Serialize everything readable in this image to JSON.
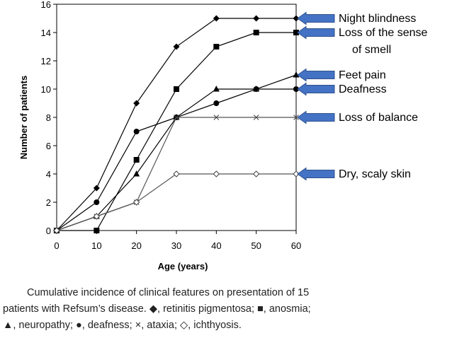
{
  "chart_data": {
    "type": "line",
    "xlabel": "Age (years)",
    "ylabel": "Number of patients",
    "x": [
      0,
      10,
      20,
      30,
      40,
      50,
      60
    ],
    "xlim": [
      0,
      60
    ],
    "ylim": [
      0,
      16
    ],
    "x_ticks": [
      0,
      10,
      20,
      30,
      40,
      50,
      60
    ],
    "y_ticks": [
      0,
      2,
      4,
      6,
      8,
      10,
      12,
      14,
      16
    ],
    "grid": false,
    "legend": "none",
    "series": [
      {
        "marker": "filled-diamond",
        "values": [
          0,
          3,
          9,
          13,
          15,
          15,
          15
        ]
      },
      {
        "marker": "filled-square",
        "values": [
          0,
          0,
          5,
          10,
          13,
          14,
          14
        ]
      },
      {
        "marker": "filled-triangle",
        "values": [
          0,
          1,
          4,
          8,
          10,
          10,
          11
        ]
      },
      {
        "marker": "filled-circle",
        "values": [
          0,
          2,
          7,
          8,
          9,
          10,
          10
        ]
      },
      {
        "marker": "cross",
        "values": [
          0,
          1,
          2,
          8,
          8,
          8,
          8
        ]
      },
      {
        "marker": "open-diamond",
        "values": [
          0,
          1,
          2,
          4,
          4,
          4,
          4
        ]
      }
    ]
  },
  "callouts": [
    {
      "value": 15,
      "lines": [
        "Night blindness"
      ]
    },
    {
      "value": 14,
      "lines": [
        "Loss of the sense",
        "of smell"
      ]
    },
    {
      "value": 11,
      "lines": [
        "Feet pain"
      ]
    },
    {
      "value": 10,
      "lines": [
        "Deafness"
      ]
    },
    {
      "value": 8,
      "lines": [
        "Loss of balance"
      ]
    },
    {
      "value": 4,
      "lines": [
        "Dry, scaly skin"
      ]
    }
  ],
  "caption": {
    "line1": "Cumulative incidence of clinical features on presentation of 15",
    "line2": "patients with Refsum’s disease. ◆, retinitis pigmentosa; ■, anosmia;",
    "line3": "▲, neuropathy; ●, deafness; ×, ataxia; ◇, ichthyosis."
  },
  "colors": {
    "line": "#000000",
    "arrow": "#4472C4",
    "arrow_stroke": "#2F528F",
    "caption": "#222222"
  }
}
